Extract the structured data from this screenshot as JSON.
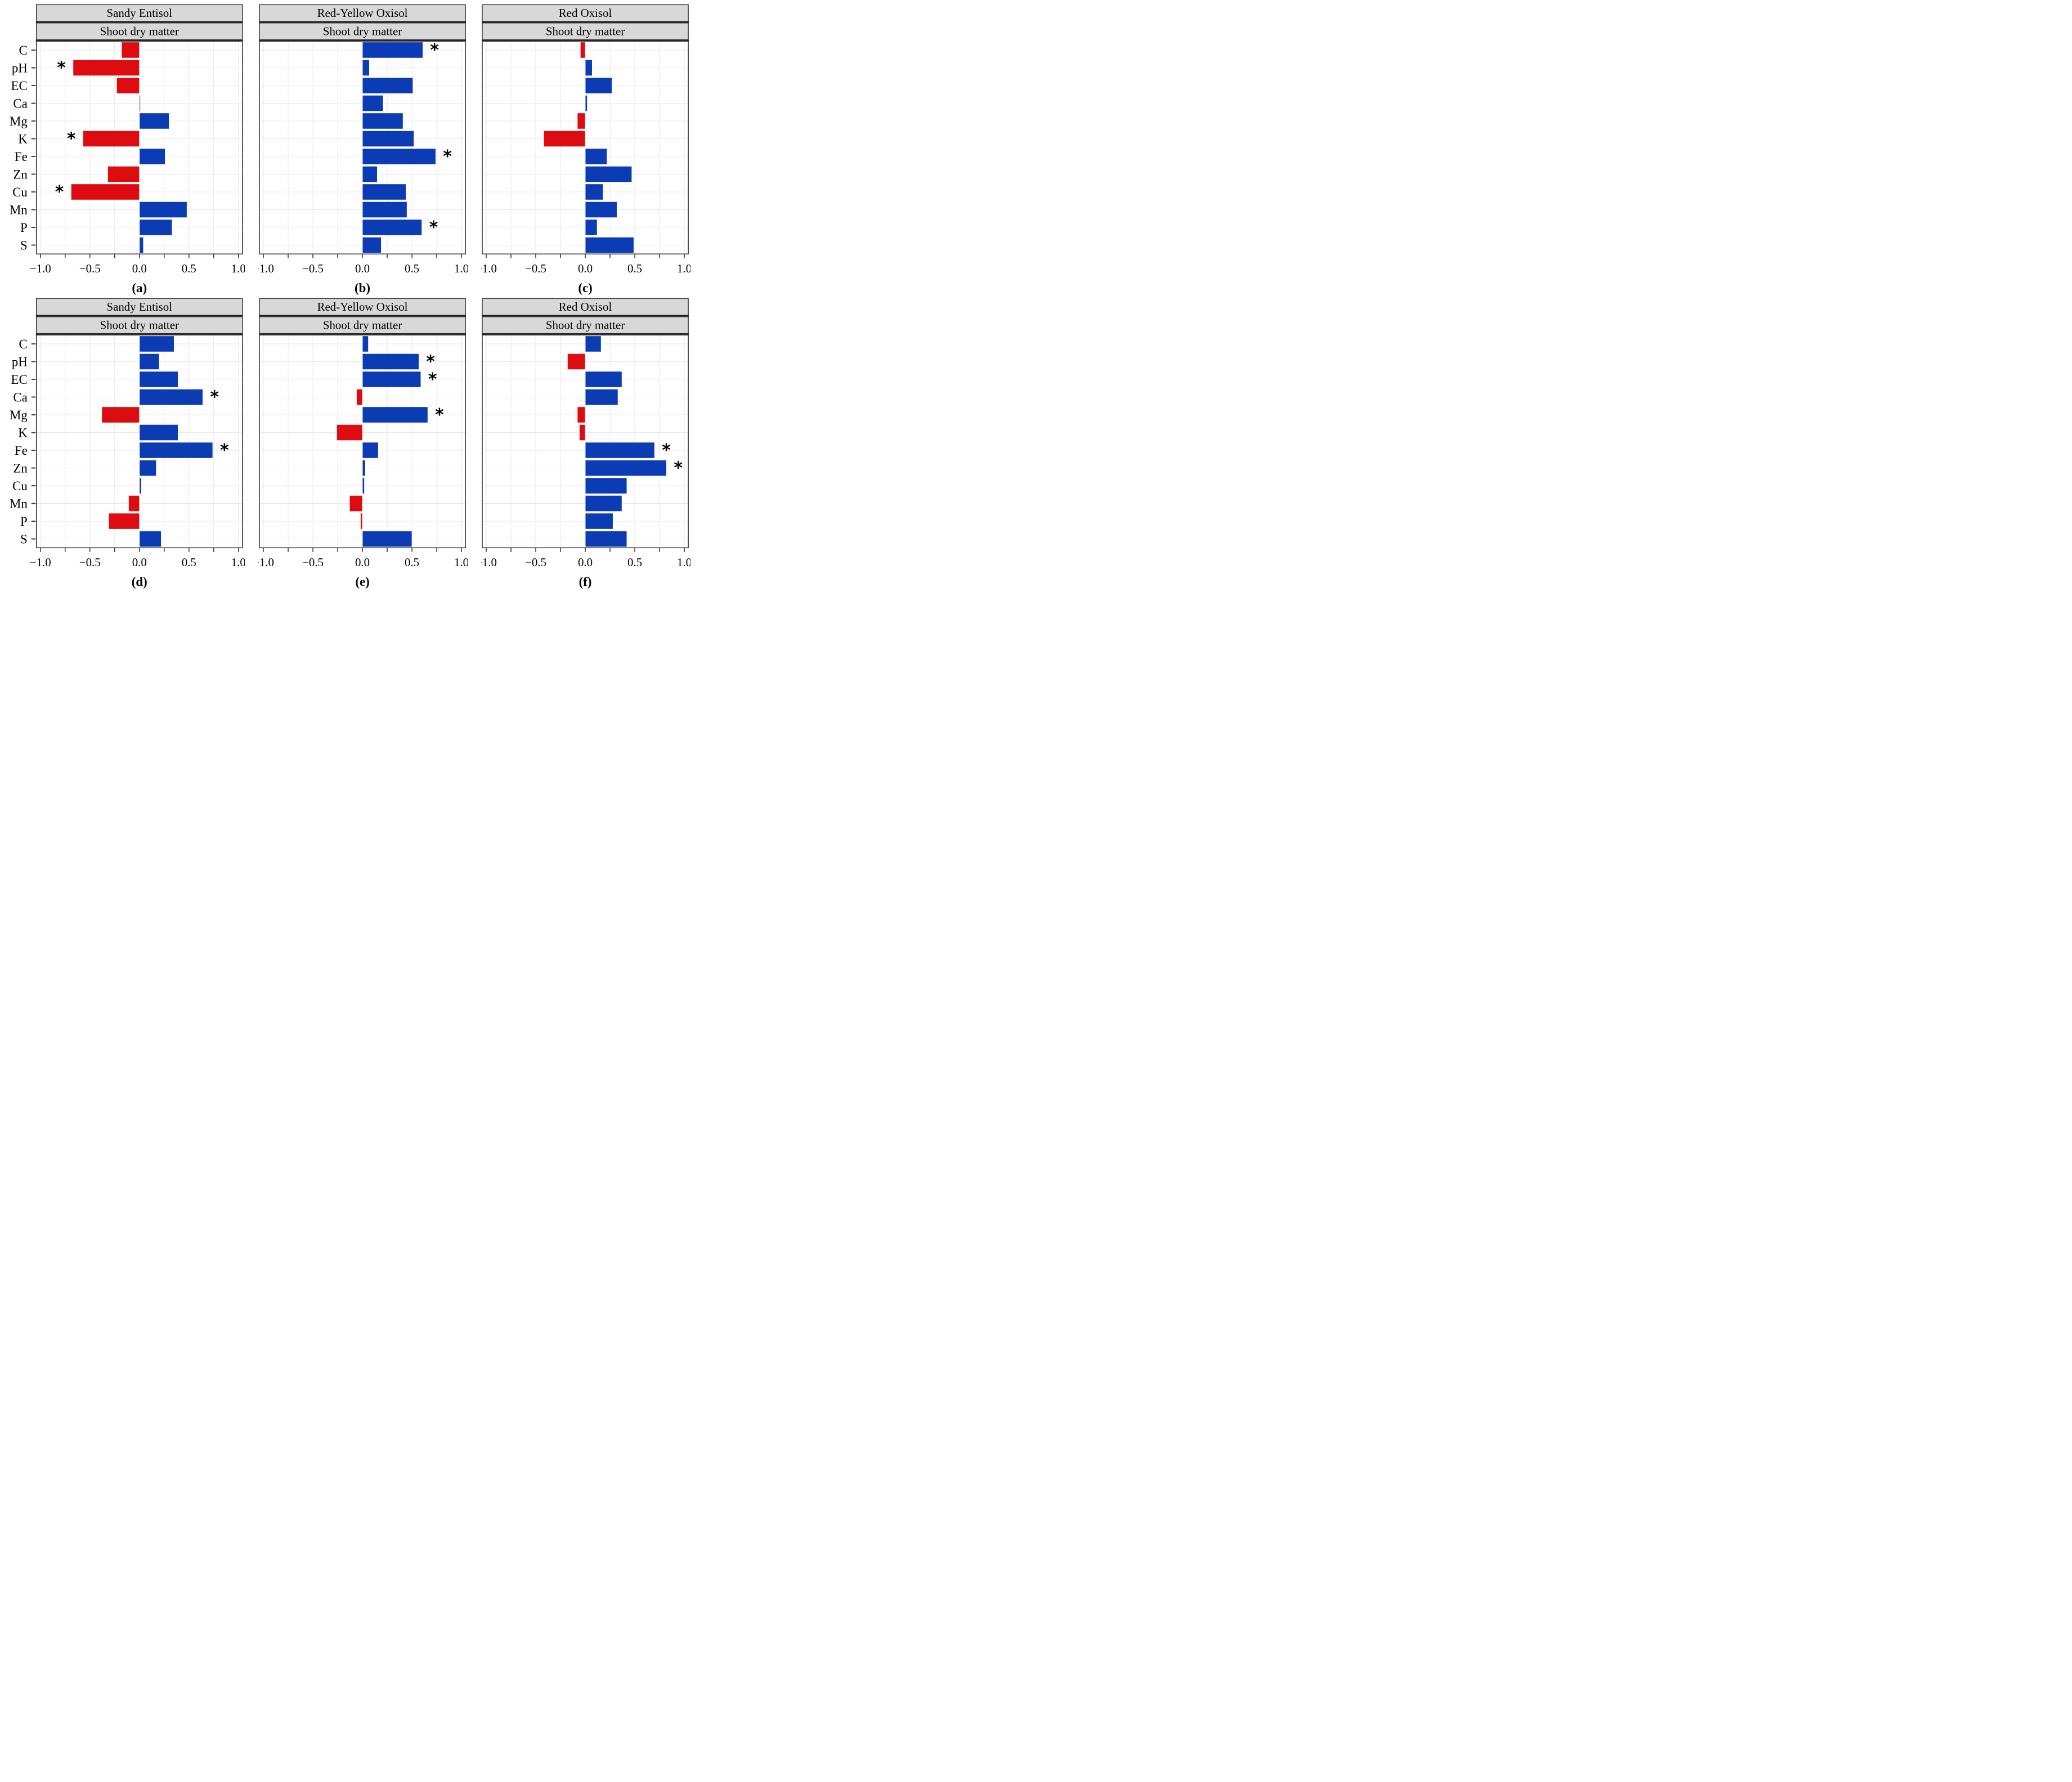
{
  "chart_data": {
    "type": "bar",
    "orientation": "horizontal",
    "title": "",
    "categories": [
      "C",
      "pH",
      "EC",
      "Ca",
      "Mg",
      "K",
      "Fe",
      "Zn",
      "Cu",
      "Mn",
      "P",
      "S"
    ],
    "xlabel": "",
    "ylabel": "",
    "xlim": [
      -1.04,
      1.04
    ],
    "x_tick_values": [
      -1.0,
      -0.5,
      0.0,
      0.5,
      1.0
    ],
    "x_tick_labels": [
      "−1.0",
      "−0.5",
      "0.0",
      "0.5",
      "1.0"
    ],
    "minor_tick_step": 0.25,
    "grid": true,
    "significance_marker": "*",
    "colors": {
      "positive_bar": "#0b3cb4",
      "negative_bar": "#dc0c10",
      "header_bg": "#d8d8d8",
      "panel_border": "#3c3c3c",
      "separator": "#1c1c1c",
      "gridline": "#e8e8e8",
      "text": "#000000",
      "background": "#ffffff"
    },
    "panels": [
      {
        "id": "a",
        "caption": "(a)",
        "column_title": "Sandy Entisol",
        "row_title": "Shoot dry matter",
        "show_y_labels": true,
        "values": [
          -0.18,
          -0.67,
          -0.23,
          0.01,
          0.3,
          -0.57,
          0.26,
          -0.32,
          -0.69,
          0.48,
          0.33,
          0.04
        ],
        "significant": [
          "pH",
          "K",
          "Cu"
        ]
      },
      {
        "id": "b",
        "caption": "(b)",
        "column_title": "Red-Yellow Oxisol",
        "row_title": "Shoot dry matter",
        "show_y_labels": false,
        "values": [
          0.61,
          0.07,
          0.51,
          0.21,
          0.41,
          0.52,
          0.74,
          0.15,
          0.44,
          0.45,
          0.6,
          0.19
        ],
        "significant": [
          "C",
          "Fe",
          "P"
        ]
      },
      {
        "id": "c",
        "caption": "(c)",
        "column_title": "Red Oxisol",
        "row_title": "Shoot dry matter",
        "show_y_labels": false,
        "values": [
          -0.05,
          0.07,
          0.27,
          0.02,
          -0.08,
          -0.42,
          0.22,
          0.47,
          0.18,
          0.32,
          0.12,
          0.49
        ],
        "significant": []
      },
      {
        "id": "d",
        "caption": "(d)",
        "column_title": "Sandy Entisol",
        "row_title": "Shoot dry matter",
        "show_y_labels": true,
        "values": [
          0.35,
          0.2,
          0.39,
          0.64,
          -0.38,
          0.39,
          0.74,
          0.17,
          0.02,
          -0.11,
          -0.31,
          0.22
        ],
        "significant": [
          "Ca",
          "Fe"
        ]
      },
      {
        "id": "e",
        "caption": "(e)",
        "column_title": "Red-Yellow Oxisol",
        "row_title": "Shoot dry matter",
        "show_y_labels": false,
        "values": [
          0.06,
          0.57,
          0.59,
          -0.06,
          0.66,
          -0.26,
          0.16,
          0.03,
          0.02,
          -0.13,
          -0.02,
          0.5
        ],
        "significant": [
          "pH",
          "EC",
          "Mg"
        ]
      },
      {
        "id": "f",
        "caption": "(f)",
        "column_title": "Red Oxisol",
        "row_title": "Shoot dry matter",
        "show_y_labels": false,
        "values": [
          0.16,
          -0.18,
          0.37,
          0.33,
          -0.08,
          -0.06,
          0.7,
          0.82,
          0.42,
          0.37,
          0.28,
          0.42
        ],
        "significant": [
          "Fe",
          "Zn"
        ]
      }
    ]
  }
}
